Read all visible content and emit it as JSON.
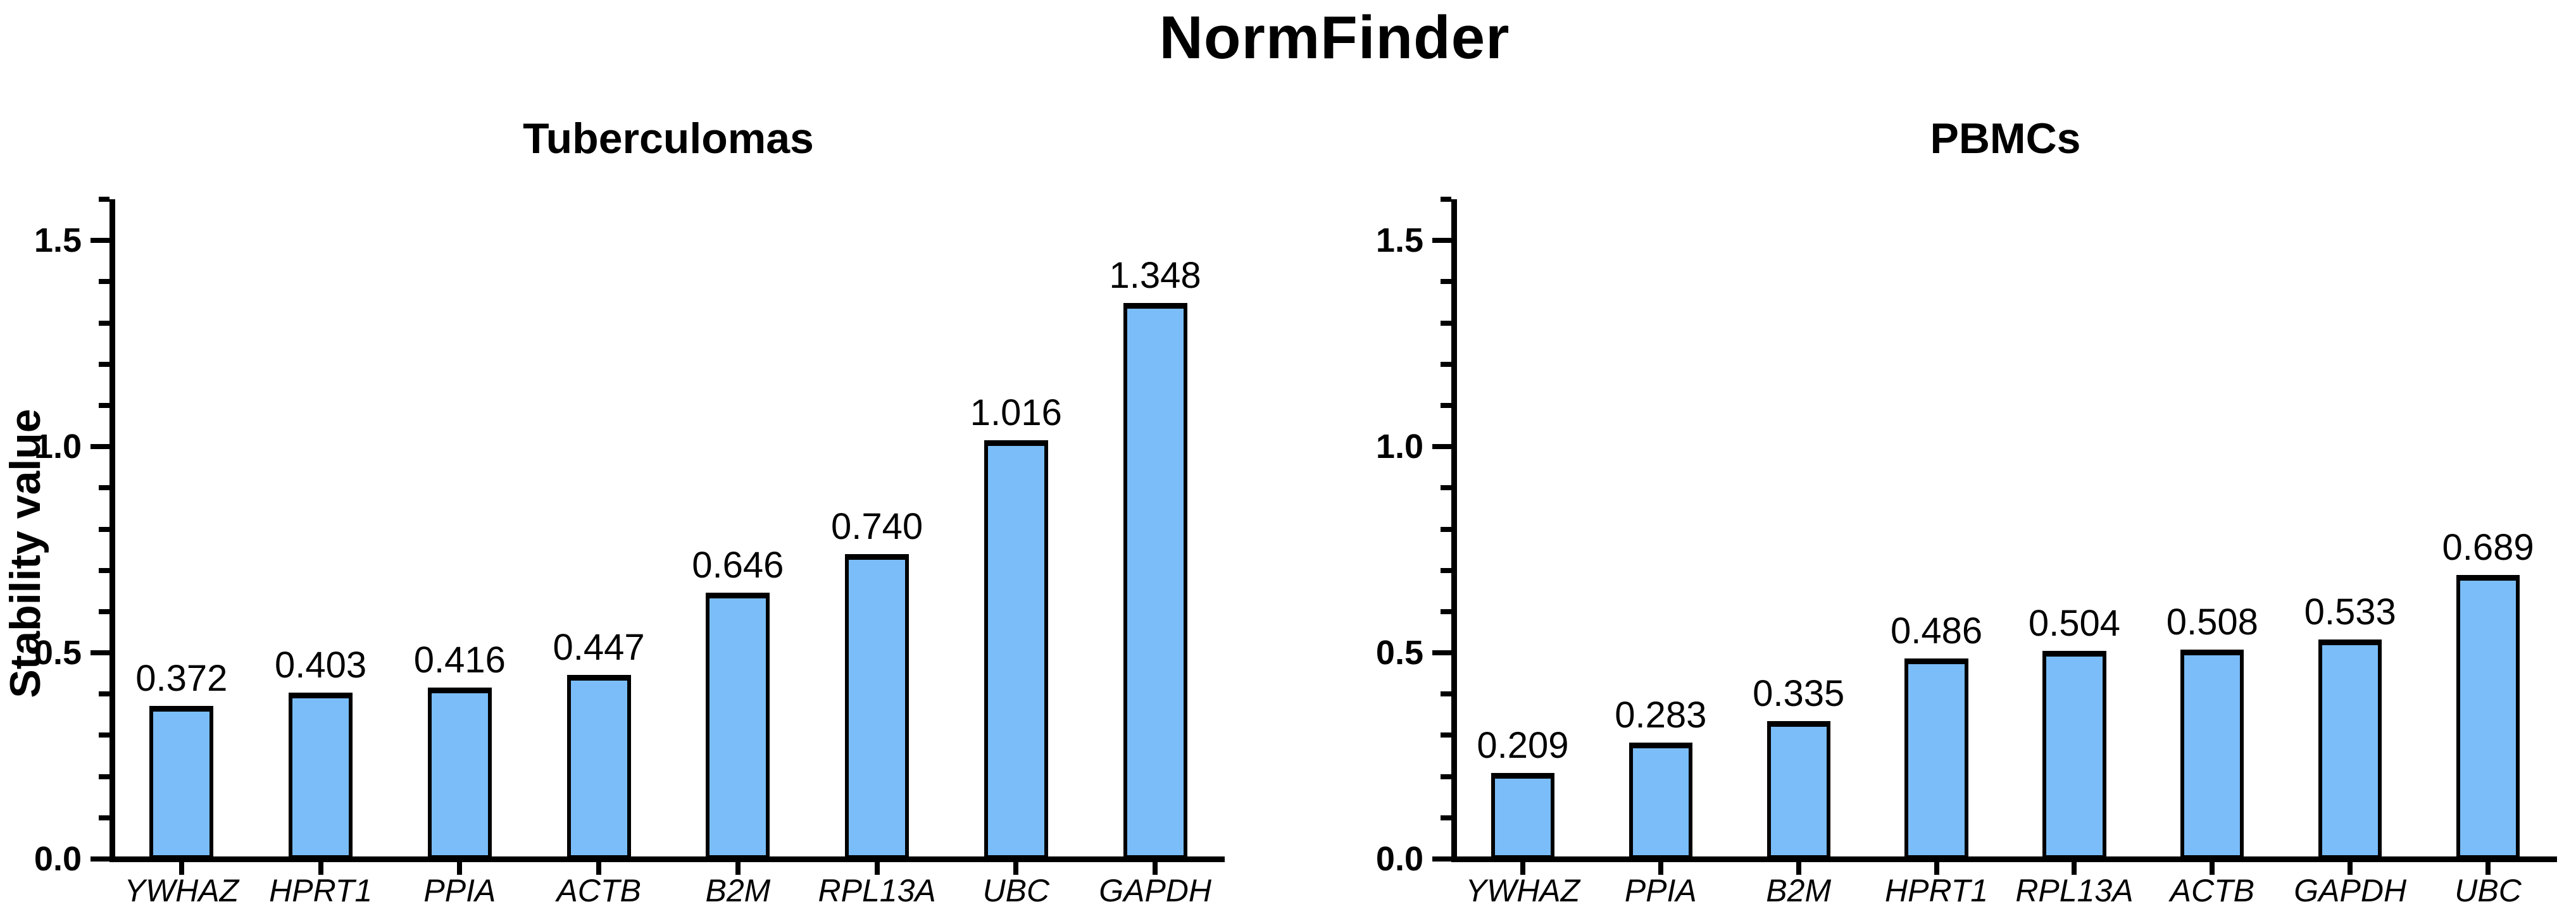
{
  "title": "NormFinder",
  "ylabel": "Stability value",
  "chart_data": [
    {
      "type": "bar",
      "title": "Tuberculomas",
      "categories": [
        "YWHAZ",
        "HPRT1",
        "PPIA",
        "ACTB",
        "B2M",
        "RPL13A",
        "UBC",
        "GAPDH"
      ],
      "values": [
        0.372,
        0.403,
        0.416,
        0.447,
        0.646,
        0.74,
        1.016,
        1.348
      ],
      "value_labels": [
        "0.372",
        "0.403",
        "0.416",
        "0.447",
        "0.646",
        "0.740",
        "1.016",
        "1.348"
      ],
      "xlabel": "",
      "ylabel": "Stability value",
      "ylim": [
        0,
        1.6
      ],
      "yticks": [
        0.0,
        0.5,
        1.0,
        1.5
      ],
      "ytick_labels": [
        "0.0",
        "0.5",
        "1.0",
        "1.5"
      ],
      "minor_tick_step": 0.1,
      "grid": false,
      "legend": "none",
      "bar_color": "#7ABDF8",
      "bar_border_color": "#000000"
    },
    {
      "type": "bar",
      "title": "PBMCs",
      "categories": [
        "YWHAZ",
        "PPIA",
        "B2M",
        "HPRT1",
        "RPL13A",
        "ACTB",
        "GAPDH",
        "UBC"
      ],
      "values": [
        0.209,
        0.283,
        0.335,
        0.486,
        0.504,
        0.508,
        0.533,
        0.689
      ],
      "value_labels": [
        "0.209",
        "0.283",
        "0.335",
        "0.486",
        "0.504",
        "0.508",
        "0.533",
        "0.689"
      ],
      "xlabel": "",
      "ylabel": "",
      "ylim": [
        0,
        1.6
      ],
      "yticks": [
        0.0,
        0.5,
        1.0,
        1.5
      ],
      "ytick_labels": [
        "0.0",
        "0.5",
        "1.0",
        "1.5"
      ],
      "minor_tick_step": 0.1,
      "grid": false,
      "legend": "none",
      "bar_color": "#7ABDF8",
      "bar_border_color": "#000000"
    }
  ]
}
